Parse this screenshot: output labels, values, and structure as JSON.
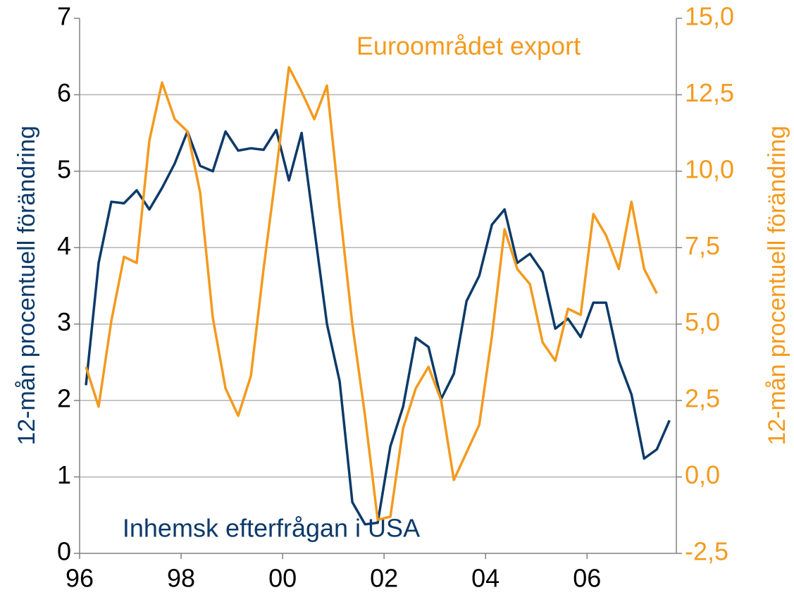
{
  "chart_data": {
    "type": "line",
    "annotations": [
      "Euroområdet  export",
      "Inhemsk efterfrågan i USA"
    ],
    "ylabel": "12-mån procentuell förändring",
    "y2label": "12-mån procentuell förändring",
    "x": [
      1996.125,
      1996.375,
      1996.625,
      1996.875,
      1997.125,
      1997.375,
      1997.625,
      1997.875,
      1998.125,
      1998.375,
      1998.625,
      1998.875,
      1999.125,
      1999.375,
      1999.625,
      1999.875,
      2000.125,
      2000.375,
      2000.625,
      2000.875,
      2001.125,
      2001.375,
      2001.625,
      2001.875,
      2002.125,
      2002.375,
      2002.625,
      2002.875,
      2003.125,
      2003.375,
      2003.625,
      2003.875,
      2004.125,
      2004.375,
      2004.625,
      2004.875,
      2005.125,
      2005.375,
      2005.625,
      2005.875,
      2006.125,
      2006.375,
      2006.625,
      2006.875,
      2007.125,
      2007.375,
      2007.625
    ],
    "series": [
      {
        "name": "Inhemsk efterfrågan i USA",
        "color": "#0c3a69",
        "axis": "y",
        "values": [
          2.2,
          3.8,
          4.6,
          4.58,
          4.75,
          4.5,
          4.78,
          5.1,
          5.52,
          5.07,
          5.0,
          5.52,
          5.27,
          5.3,
          5.28,
          5.54,
          4.88,
          5.5,
          4.25,
          3.0,
          2.25,
          0.67,
          0.38,
          0.4,
          1.4,
          1.92,
          2.82,
          2.7,
          2.02,
          2.35,
          3.3,
          3.63,
          4.3,
          4.5,
          3.8,
          3.92,
          3.68,
          2.94,
          3.07,
          2.83,
          3.28,
          3.28,
          2.52,
          2.08,
          1.24,
          1.36,
          1.74
        ]
      },
      {
        "name": "Euroområdet  export",
        "color": "#f39a1e",
        "axis": "y2",
        "values": [
          3.6,
          2.3,
          5.1,
          7.2,
          7.0,
          11.0,
          12.9,
          11.7,
          11.3,
          9.3,
          5.2,
          2.9,
          2.0,
          3.3,
          6.8,
          10.0,
          13.4,
          12.6,
          11.7,
          12.8,
          8.8,
          5.0,
          2.0,
          -1.4,
          -1.3,
          1.6,
          2.9,
          3.6,
          2.5,
          -0.1,
          0.8,
          1.7,
          4.6,
          8.1,
          6.8,
          6.3,
          4.4,
          3.8,
          5.5,
          5.3,
          8.6,
          7.9,
          6.8,
          9.0,
          6.8,
          6.0,
          null
        ]
      }
    ],
    "xlim": [
      1996,
      2007.76
    ],
    "xticks": [
      {
        "value": 1996,
        "label": "96"
      },
      {
        "value": 1998,
        "label": "98"
      },
      {
        "value": 2000,
        "label": "00"
      },
      {
        "value": 2002,
        "label": "02"
      },
      {
        "value": 2004,
        "label": "04"
      },
      {
        "value": 2006,
        "label": "06"
      }
    ],
    "ylim": [
      0,
      7
    ],
    "yticks": [
      0,
      1,
      2,
      3,
      4,
      5,
      6,
      7
    ],
    "y2lim": [
      -2.5,
      15
    ],
    "y2ticks": [
      {
        "value": -2.5,
        "label": "-2,5"
      },
      {
        "value": 0,
        "label": "0,0"
      },
      {
        "value": 2.5,
        "label": "2,5"
      },
      {
        "value": 5,
        "label": "5,0"
      },
      {
        "value": 7.5,
        "label": "7,5"
      },
      {
        "value": 10,
        "label": "10,0"
      },
      {
        "value": 12.5,
        "label": "12,5"
      },
      {
        "value": 15,
        "label": "15,0"
      }
    ],
    "grid": true
  }
}
